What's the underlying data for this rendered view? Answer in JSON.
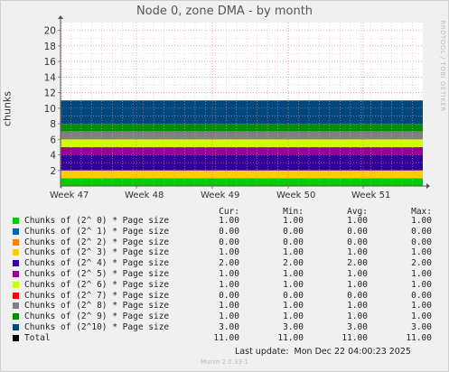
{
  "title": "Node 0, zone DMA - by month",
  "ylabel": "chunks",
  "side_text": "RRDTOOL / TOBI OETIKER",
  "footer": "Munin 2.0.33-1",
  "last_update": "Last update:  Mon Dec 22 04:00:23 2025",
  "headers": {
    "cur": "Cur:",
    "min": "Min:",
    "avg": "Avg:",
    "max": "Max:"
  },
  "chart_data": {
    "type": "area",
    "stacked": true,
    "title": "Node 0, zone DMA - by month",
    "ylabel": "chunks",
    "ylim": [
      0,
      21
    ],
    "yticks": [
      2,
      4,
      6,
      8,
      10,
      12,
      14,
      16,
      18,
      20
    ],
    "xticks": [
      "Week 47",
      "Week 48",
      "Week 49",
      "Week 50",
      "Week 51"
    ],
    "grid": true,
    "series": [
      {
        "name": "Chunks of (2^ 0) * Page size",
        "color": "#00cc00",
        "value": 1.0
      },
      {
        "name": "Chunks of (2^ 1) * Page size",
        "color": "#0066b3",
        "value": 0.0
      },
      {
        "name": "Chunks of (2^ 2) * Page size",
        "color": "#ff8000",
        "value": 0.0
      },
      {
        "name": "Chunks of (2^ 3) * Page size",
        "color": "#ffcc00",
        "value": 1.0
      },
      {
        "name": "Chunks of (2^ 4) * Page size",
        "color": "#330099",
        "value": 2.0
      },
      {
        "name": "Chunks of (2^ 5) * Page size",
        "color": "#990099",
        "value": 1.0
      },
      {
        "name": "Chunks of (2^ 6) * Page size",
        "color": "#ccff00",
        "value": 1.0
      },
      {
        "name": "Chunks of (2^ 7) * Page size",
        "color": "#ff0000",
        "value": 0.0
      },
      {
        "name": "Chunks of (2^ 8) * Page size",
        "color": "#808080",
        "value": 1.0
      },
      {
        "name": "Chunks of (2^ 9) * Page size",
        "color": "#008f00",
        "value": 1.0
      },
      {
        "name": "Chunks of (2^10) * Page size",
        "color": "#00487d",
        "value": 3.0
      }
    ]
  },
  "legend": [
    {
      "label": "Chunks of (2^ 0) * Page size",
      "color": "#00cc00",
      "cur": "1.00",
      "min": "1.00",
      "avg": "1.00",
      "max": "1.00"
    },
    {
      "label": "Chunks of (2^ 1) * Page size",
      "color": "#0066b3",
      "cur": "0.00",
      "min": "0.00",
      "avg": "0.00",
      "max": "0.00"
    },
    {
      "label": "Chunks of (2^ 2) * Page size",
      "color": "#ff8000",
      "cur": "0.00",
      "min": "0.00",
      "avg": "0.00",
      "max": "0.00"
    },
    {
      "label": "Chunks of (2^ 3) * Page size",
      "color": "#ffcc00",
      "cur": "1.00",
      "min": "1.00",
      "avg": "1.00",
      "max": "1.00"
    },
    {
      "label": "Chunks of (2^ 4) * Page size",
      "color": "#330099",
      "cur": "2.00",
      "min": "2.00",
      "avg": "2.00",
      "max": "2.00"
    },
    {
      "label": "Chunks of (2^ 5) * Page size",
      "color": "#990099",
      "cur": "1.00",
      "min": "1.00",
      "avg": "1.00",
      "max": "1.00"
    },
    {
      "label": "Chunks of (2^ 6) * Page size",
      "color": "#ccff00",
      "cur": "1.00",
      "min": "1.00",
      "avg": "1.00",
      "max": "1.00"
    },
    {
      "label": "Chunks of (2^ 7) * Page size",
      "color": "#ff0000",
      "cur": "0.00",
      "min": "0.00",
      "avg": "0.00",
      "max": "0.00"
    },
    {
      "label": "Chunks of (2^ 8) * Page size",
      "color": "#808080",
      "cur": "1.00",
      "min": "1.00",
      "avg": "1.00",
      "max": "1.00"
    },
    {
      "label": "Chunks of (2^ 9) * Page size",
      "color": "#008f00",
      "cur": "1.00",
      "min": "1.00",
      "avg": "1.00",
      "max": "1.00"
    },
    {
      "label": "Chunks of (2^10) * Page size",
      "color": "#00487d",
      "cur": "3.00",
      "min": "3.00",
      "avg": "3.00",
      "max": "3.00"
    },
    {
      "label": "Total",
      "color": "#000000",
      "cur": "11.00",
      "min": "11.00",
      "avg": "11.00",
      "max": "11.00"
    }
  ]
}
